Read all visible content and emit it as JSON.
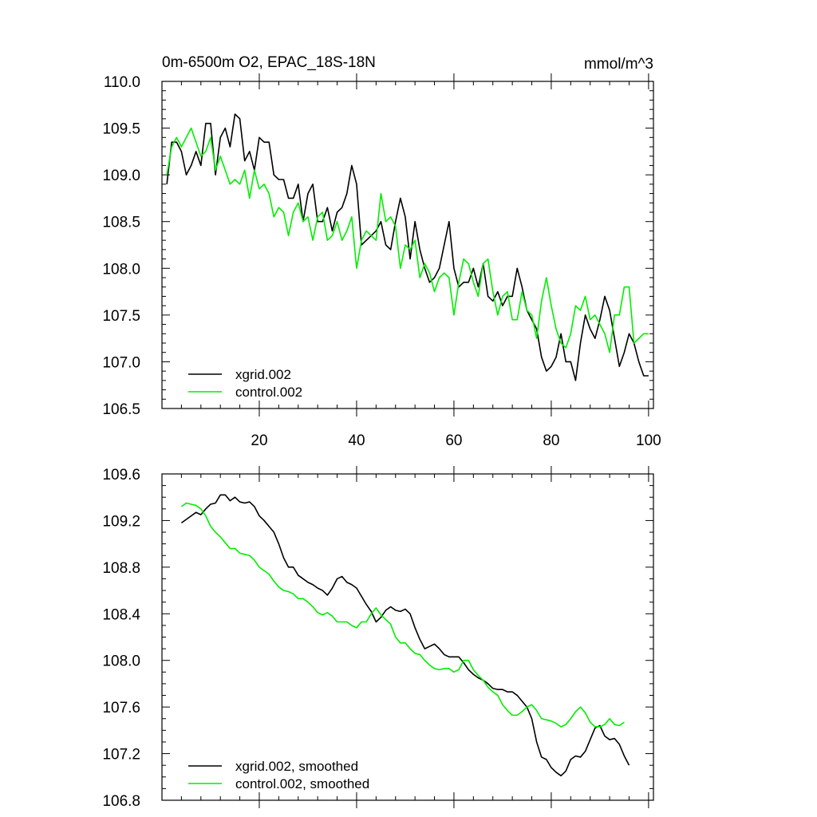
{
  "colors": {
    "xgrid": "#000000",
    "control": "#00ee00",
    "axis": "#000000",
    "background": "#ffffff"
  },
  "chart_data": [
    {
      "type": "line",
      "title_left": "0m-6500m O2, EPAC_18S-18N",
      "title_right": "mmol/m^3",
      "xlim": [
        0,
        101
      ],
      "ylim": [
        106.5,
        110.0
      ],
      "x_major_ticks": [
        20,
        40,
        60,
        80,
        100
      ],
      "x_tick_labels": [
        "20",
        "40",
        "60",
        "80",
        "100"
      ],
      "y_major_ticks": [
        106.5,
        107.0,
        107.5,
        108.0,
        108.5,
        109.0,
        109.5,
        110.0
      ],
      "y_tick_labels": [
        "106.5",
        "107.0",
        "107.5",
        "108.0",
        "108.5",
        "109.0",
        "109.5",
        "110.0"
      ],
      "x_minor_step": 4,
      "y_minor_step": 0.1,
      "legend": {
        "placement": "bottom-left",
        "items": [
          "xgrid.002",
          "control.002"
        ]
      },
      "series": [
        {
          "name": "xgrid.002",
          "x_start": 1,
          "values": [
            108.9,
            109.35,
            109.35,
            109.25,
            109.0,
            109.1,
            109.25,
            109.1,
            109.55,
            109.55,
            109.0,
            109.4,
            109.5,
            109.3,
            109.65,
            109.6,
            109.15,
            109.25,
            109.05,
            109.4,
            109.35,
            109.35,
            109.0,
            108.95,
            108.95,
            108.75,
            108.75,
            108.9,
            108.5,
            108.8,
            108.9,
            108.5,
            108.5,
            108.65,
            108.4,
            108.6,
            108.65,
            108.8,
            109.1,
            108.9,
            108.25,
            108.3,
            108.35,
            108.4,
            108.5,
            108.25,
            108.2,
            108.5,
            108.75,
            108.55,
            108.1,
            108.5,
            108.2,
            108.0,
            107.85,
            107.9,
            108.0,
            108.25,
            108.5,
            108.0,
            107.8,
            107.85,
            107.85,
            108.0,
            107.8,
            108.05,
            107.7,
            107.65,
            107.75,
            107.6,
            107.7,
            107.7,
            108.0,
            107.8,
            107.55,
            107.45,
            107.35,
            107.05,
            106.9,
            106.95,
            107.05,
            107.3,
            107.0,
            107.0,
            106.8,
            107.2,
            107.5,
            107.35,
            107.25,
            107.45,
            107.7,
            107.55,
            107.25,
            106.95,
            107.1,
            107.3,
            107.2,
            107.0,
            106.85,
            106.85
          ]
        },
        {
          "name": "control.002",
          "x_start": 1,
          "values": [
            109.0,
            109.3,
            109.4,
            109.3,
            109.4,
            109.5,
            109.35,
            109.2,
            109.25,
            109.4,
            109.05,
            109.2,
            109.05,
            108.9,
            108.95,
            108.9,
            109.05,
            108.75,
            109.05,
            108.85,
            108.9,
            108.8,
            108.55,
            108.65,
            108.6,
            108.35,
            108.6,
            108.7,
            108.5,
            108.55,
            108.3,
            108.55,
            108.6,
            108.3,
            108.35,
            108.5,
            108.3,
            108.4,
            108.55,
            108.0,
            108.3,
            108.4,
            108.35,
            108.3,
            108.8,
            108.5,
            108.55,
            108.45,
            108.0,
            108.25,
            108.2,
            108.3,
            107.9,
            108.05,
            107.95,
            107.75,
            107.9,
            107.95,
            107.9,
            107.5,
            107.85,
            108.1,
            108.05,
            107.85,
            107.7,
            108.05,
            108.1,
            107.75,
            107.5,
            107.7,
            107.75,
            107.45,
            107.45,
            107.75,
            107.55,
            107.5,
            107.25,
            107.65,
            107.9,
            107.6,
            107.35,
            107.2,
            107.15,
            107.3,
            107.6,
            107.55,
            107.7,
            107.45,
            107.5,
            107.4,
            107.3,
            107.1,
            107.5,
            107.5,
            107.8,
            107.8,
            107.2,
            107.25,
            107.3,
            107.3
          ]
        }
      ]
    },
    {
      "type": "line",
      "xlim": [
        0,
        101
      ],
      "ylim": [
        106.8,
        109.6
      ],
      "x_major_ticks": [
        20,
        40,
        60,
        80,
        100
      ],
      "x_tick_labels": [],
      "y_major_ticks": [
        106.8,
        107.2,
        107.6,
        108.0,
        108.4,
        108.8,
        109.2,
        109.6
      ],
      "y_tick_labels": [
        "106.8",
        "107.2",
        "107.6",
        "108.0",
        "108.4",
        "108.8",
        "109.2",
        "109.6"
      ],
      "x_minor_step": 4,
      "y_minor_step": 0.1,
      "legend": {
        "placement": "bottom-left",
        "items": [
          "xgrid.002, smoothed",
          "control.002, smoothed"
        ]
      },
      "series": [
        {
          "name": "xgrid.002, smoothed",
          "x_start": 4,
          "values": [
            109.18,
            109.21,
            109.24,
            109.27,
            109.25,
            109.3,
            109.34,
            109.35,
            109.42,
            109.42,
            109.37,
            109.4,
            109.36,
            109.35,
            109.36,
            109.32,
            109.24,
            109.2,
            109.15,
            109.1,
            109.0,
            108.88,
            108.8,
            108.8,
            108.73,
            108.7,
            108.67,
            108.65,
            108.62,
            108.6,
            108.56,
            108.62,
            108.7,
            108.72,
            108.67,
            108.65,
            108.62,
            108.55,
            108.48,
            108.42,
            108.33,
            108.37,
            108.43,
            108.46,
            108.43,
            108.42,
            108.44,
            108.4,
            108.28,
            108.18,
            108.1,
            108.12,
            108.14,
            108.1,
            108.05,
            108.03,
            108.03,
            108.03,
            107.98,
            107.92,
            107.88,
            107.85,
            107.83,
            107.8,
            107.76,
            107.75,
            107.75,
            107.73,
            107.73,
            107.7,
            107.65,
            107.6,
            107.5,
            107.3,
            107.17,
            107.15,
            107.08,
            107.04,
            107.01,
            107.05,
            107.15,
            107.18,
            107.17,
            107.22,
            107.32,
            107.42,
            107.44,
            107.35,
            107.32,
            107.33,
            107.28,
            107.18,
            107.1
          ]
        },
        {
          "name": "control.002, smoothed",
          "x_start": 4,
          "values": [
            109.32,
            109.35,
            109.34,
            109.33,
            109.3,
            109.24,
            109.15,
            109.1,
            109.06,
            109.01,
            108.96,
            108.96,
            108.92,
            108.91,
            108.9,
            108.86,
            108.8,
            108.77,
            108.74,
            108.68,
            108.63,
            108.6,
            108.59,
            108.57,
            108.53,
            108.53,
            108.5,
            108.46,
            108.41,
            108.39,
            108.41,
            108.38,
            108.33,
            108.33,
            108.33,
            108.3,
            108.28,
            108.33,
            108.33,
            108.4,
            108.45,
            108.39,
            108.35,
            108.31,
            108.2,
            108.15,
            108.15,
            108.1,
            108.06,
            108.05,
            108.0,
            107.96,
            107.93,
            107.92,
            107.93,
            107.93,
            107.9,
            107.92,
            108.0,
            108.0,
            107.92,
            107.87,
            107.83,
            107.77,
            107.73,
            107.7,
            107.62,
            107.57,
            107.53,
            107.53,
            107.56,
            107.6,
            107.62,
            107.57,
            107.5,
            107.49,
            107.48,
            107.46,
            107.43,
            107.45,
            107.5,
            107.56,
            107.6,
            107.55,
            107.47,
            107.43,
            107.43,
            107.45,
            107.5,
            107.45,
            107.44,
            107.47
          ]
        }
      ]
    }
  ]
}
